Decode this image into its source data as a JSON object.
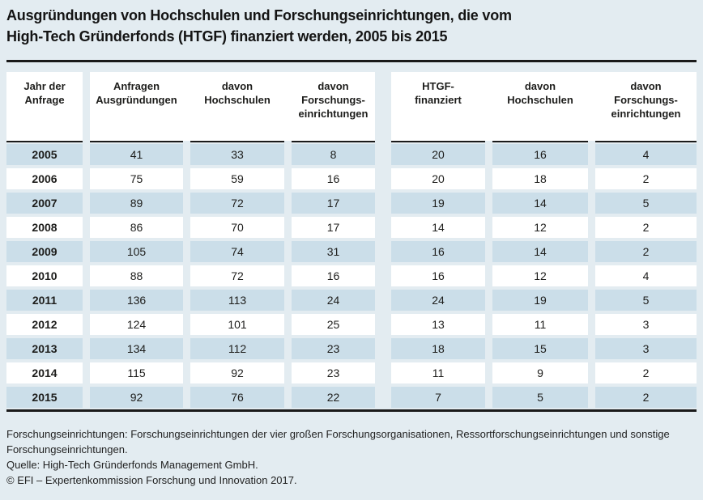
{
  "title": {
    "line1": "Ausgründungen von Hochschulen und Forschungseinrichtungen, die vom",
    "line2": "High-Tech Gründerfonds (HTGF) finanziert werden, 2005 bis 2015"
  },
  "table": {
    "headers": [
      {
        "lines": [
          "Jahr der",
          "Anfrage"
        ]
      },
      {
        "lines": [
          "Anfragen",
          "Ausgründungen"
        ]
      },
      {
        "lines": [
          "davon",
          "Hochschulen"
        ]
      },
      {
        "lines": [
          "davon",
          "Forschungs-",
          "einrichtungen"
        ]
      },
      {
        "lines": [
          "HTGF-",
          "finanziert"
        ]
      },
      {
        "lines": [
          "davon",
          "Hochschulen"
        ]
      },
      {
        "lines": [
          "davon",
          "Forschungs-",
          "einrichtungen"
        ]
      }
    ],
    "rows": [
      {
        "year": "2005",
        "values": [
          "41",
          "33",
          "8",
          "20",
          "16",
          "4"
        ],
        "shaded": true
      },
      {
        "year": "2006",
        "values": [
          "75",
          "59",
          "16",
          "20",
          "18",
          "2"
        ],
        "shaded": false
      },
      {
        "year": "2007",
        "values": [
          "89",
          "72",
          "17",
          "19",
          "14",
          "5"
        ],
        "shaded": true
      },
      {
        "year": "2008",
        "values": [
          "86",
          "70",
          "17",
          "14",
          "12",
          "2"
        ],
        "shaded": false
      },
      {
        "year": "2009",
        "values": [
          "105",
          "74",
          "31",
          "16",
          "14",
          "2"
        ],
        "shaded": true
      },
      {
        "year": "2010",
        "values": [
          "88",
          "72",
          "16",
          "16",
          "12",
          "4"
        ],
        "shaded": false
      },
      {
        "year": "2011",
        "values": [
          "136",
          "113",
          "24",
          "24",
          "19",
          "5"
        ],
        "shaded": true
      },
      {
        "year": "2012",
        "values": [
          "124",
          "101",
          "25",
          "13",
          "11",
          "3"
        ],
        "shaded": false
      },
      {
        "year": "2013",
        "values": [
          "134",
          "112",
          "23",
          "18",
          "15",
          "3"
        ],
        "shaded": true
      },
      {
        "year": "2014",
        "values": [
          "115",
          "92",
          "23",
          "11",
          "9",
          "2"
        ],
        "shaded": false
      },
      {
        "year": "2015",
        "values": [
          "92",
          "76",
          "22",
          "7",
          "5",
          "2"
        ],
        "shaded": true
      }
    ]
  },
  "footnotes": [
    "Forschungseinrichtungen: Forschungseinrichtungen der vier großen Forschungsorganisationen, Ressortforschungseinrichtungen und sonstige Forschungseinrichtungen.",
    "Quelle: High-Tech Gründerfonds Management GmbH.",
    "© EFI – Expertenkommission Forschung und Innovation 2017."
  ],
  "colors": {
    "page_background": "#e3ecf1",
    "header_background": "#ffffff",
    "shaded_cell": "#cbdee9",
    "white_cell": "#ffffff",
    "rule": "#1a1a1a",
    "text": "#1d1d1b"
  },
  "chart_data": {
    "type": "table",
    "title": "Ausgründungen von Hochschulen und Forschungseinrichtungen, die vom High-Tech Gründerfonds (HTGF) finanziert werden, 2005 bis 2015",
    "columns": [
      "Jahr der Anfrage",
      "Anfragen Ausgründungen",
      "davon Hochschulen",
      "davon Forschungseinrichtungen",
      "HTGF-finanziert",
      "davon Hochschulen",
      "davon Forschungseinrichtungen"
    ],
    "rows": [
      [
        2005,
        41,
        33,
        8,
        20,
        16,
        4
      ],
      [
        2006,
        75,
        59,
        16,
        20,
        18,
        2
      ],
      [
        2007,
        89,
        72,
        17,
        19,
        14,
        5
      ],
      [
        2008,
        86,
        70,
        17,
        14,
        12,
        2
      ],
      [
        2009,
        105,
        74,
        31,
        16,
        14,
        2
      ],
      [
        2010,
        88,
        72,
        16,
        16,
        12,
        4
      ],
      [
        2011,
        136,
        113,
        24,
        24,
        19,
        5
      ],
      [
        2012,
        124,
        101,
        25,
        13,
        11,
        3
      ],
      [
        2013,
        134,
        112,
        23,
        18,
        15,
        3
      ],
      [
        2014,
        115,
        92,
        23,
        11,
        9,
        2
      ],
      [
        2015,
        92,
        76,
        22,
        7,
        5,
        2
      ]
    ],
    "notes": [
      "Forschungseinrichtungen: Forschungseinrichtungen der vier großen Forschungsorganisationen, Ressortforschungseinrichtungen und sonstige Forschungseinrichtungen.",
      "Quelle: High-Tech Gründerfonds Management GmbH.",
      "© EFI – Expertenkommission Forschung und Innovation 2017."
    ]
  }
}
